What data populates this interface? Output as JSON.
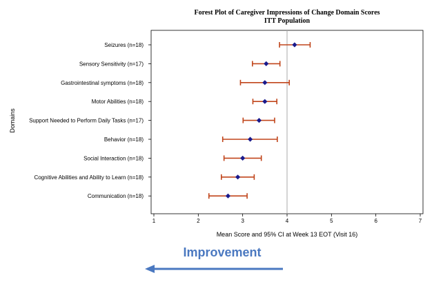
{
  "chart_data": {
    "type": "forest",
    "title": "Forest Plot of Caregiver Impressions of Change Domain Scores",
    "subtitle": "ITT Population",
    "xlabel": "Mean Score and 95% CI at Week 13 EOT (Visit 16)",
    "ylabel": "Domains",
    "xlim": [
      1,
      7
    ],
    "xticks": [
      "1",
      "2",
      "3",
      "4",
      "5",
      "6",
      "7"
    ],
    "reference_line": 4,
    "categories": [
      "Seizures (n=18)",
      "Sensory Sensitivity (n=17)",
      "Gastrointestinal symptoms (n=18)",
      "Motor Abilities (n=18)",
      "Support Needed to Perform Daily Tasks (n=17)",
      "Behavior (n=18)",
      "Social Interaction (n=18)",
      "Cognitive Abilities and Ability to Learn (n=18)",
      "Communication (n=18)"
    ],
    "mean": [
      4.17,
      3.53,
      3.5,
      3.5,
      3.37,
      3.17,
      3.0,
      2.89,
      2.67
    ],
    "lower": [
      3.83,
      3.22,
      2.95,
      3.23,
      3.01,
      2.55,
      2.58,
      2.52,
      2.24
    ],
    "upper": [
      4.52,
      3.84,
      4.05,
      3.77,
      3.72,
      3.78,
      3.42,
      3.26,
      3.1
    ],
    "colors": {
      "ci": "#c0441a",
      "point": "#1a1a8c",
      "axis": "#000000",
      "ref": "#aaaaaa"
    }
  },
  "annotation": {
    "text": "Improvement",
    "arrow_direction": "left",
    "color": "#4a78c0"
  }
}
